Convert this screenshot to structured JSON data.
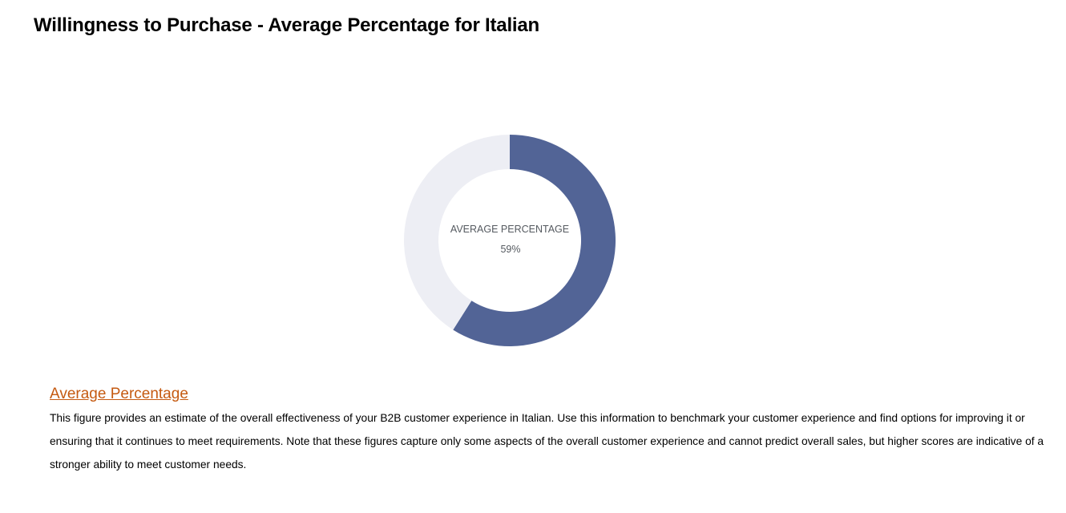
{
  "page": {
    "title": "Willingness to Purchase - Average Percentage for Italian"
  },
  "chart_data": {
    "type": "pie",
    "variant": "donut",
    "title": "",
    "center_label": "AVERAGE PERCENTAGE",
    "center_value_text": "59%",
    "slices": [
      {
        "label": "",
        "value": 59,
        "color": "#526496"
      },
      {
        "label": "",
        "value": 41,
        "color": "#edeef4"
      }
    ],
    "start_angle_deg": 0,
    "direction": "clockwise",
    "legend": "none"
  },
  "section": {
    "heading": "Average Percentage",
    "body": "This figure provides an estimate of the overall effectiveness of your B2B customer experience in Italian. Use this information to benchmark your customer experience and find options for improving it or ensuring that it continues to meet requirements. Note that these figures capture only some aspects of the overall customer experience and cannot predict overall sales, but higher scores are indicative of a stronger ability to meet customer needs."
  },
  "colors": {
    "heading_accent": "#c55a11",
    "primary_slice": "#526496",
    "remainder_slice": "#edeef4"
  }
}
